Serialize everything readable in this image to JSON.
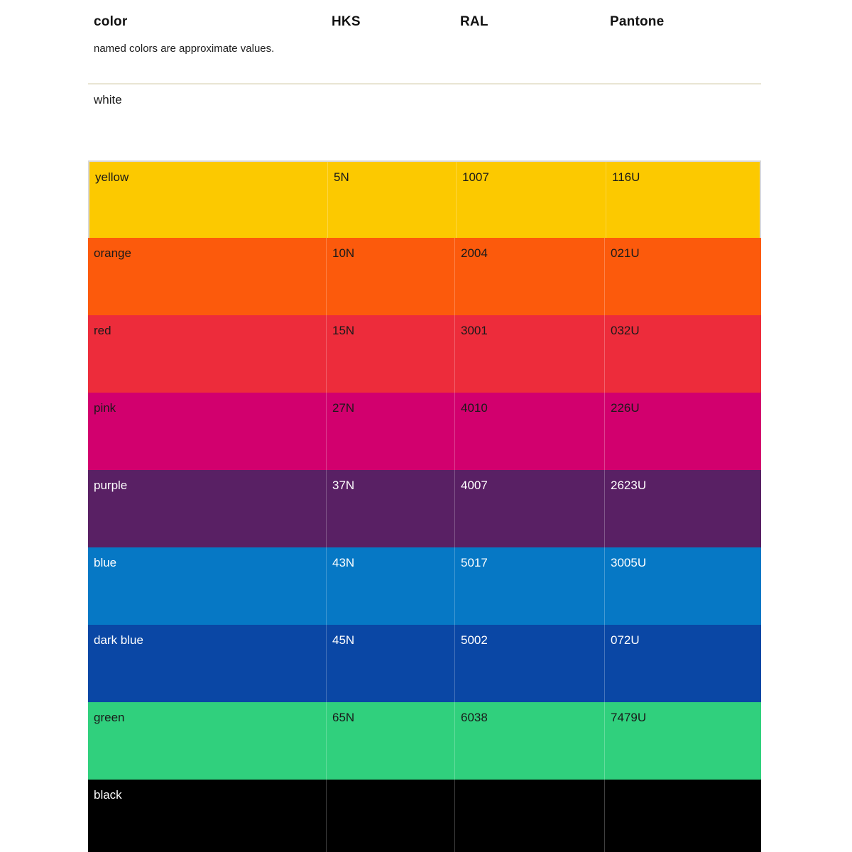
{
  "header": {
    "columns": [
      "color",
      "HKS",
      "RAL",
      "Pantone"
    ],
    "note": "named colors are approximate values."
  },
  "table": {
    "rows": [
      {
        "name": "white",
        "hks": "",
        "ral": "",
        "pantone": "",
        "bg": "#ffffff",
        "text_color": "#1a1a1a"
      },
      {
        "name": "yellow",
        "hks": "5N",
        "ral": "1007",
        "pantone": "116U",
        "bg": "#fcc900",
        "text_color": "#1a1a1a"
      },
      {
        "name": "orange",
        "hks": "10N",
        "ral": "2004",
        "pantone": "021U",
        "bg": "#fc5a0c",
        "text_color": "#1a1a1a"
      },
      {
        "name": "red",
        "hks": "15N",
        "ral": "3001",
        "pantone": "032U",
        "bg": "#ed2c3b",
        "text_color": "#1a1a1a"
      },
      {
        "name": "pink",
        "hks": "27N",
        "ral": "4010",
        "pantone": "226U",
        "bg": "#d2006e",
        "text_color": "#1a1a1a"
      },
      {
        "name": "purple",
        "hks": "37N",
        "ral": "4007",
        "pantone": "2623U",
        "bg": "#592064",
        "text_color": "#ffffff"
      },
      {
        "name": "blue",
        "hks": "43N",
        "ral": "5017",
        "pantone": "3005U",
        "bg": "#0678c5",
        "text_color": "#ffffff"
      },
      {
        "name": "dark blue",
        "hks": "45N",
        "ral": "5002",
        "pantone": "072U",
        "bg": "#0a47a5",
        "text_color": "#ffffff"
      },
      {
        "name": "green",
        "hks": "65N",
        "ral": "6038",
        "pantone": "7479U",
        "bg": "#30d07d",
        "text_color": "#1a1a1a"
      },
      {
        "name": "black",
        "hks": "",
        "ral": "",
        "pantone": "",
        "bg": "#000000",
        "text_color": "#ffffff"
      }
    ]
  }
}
